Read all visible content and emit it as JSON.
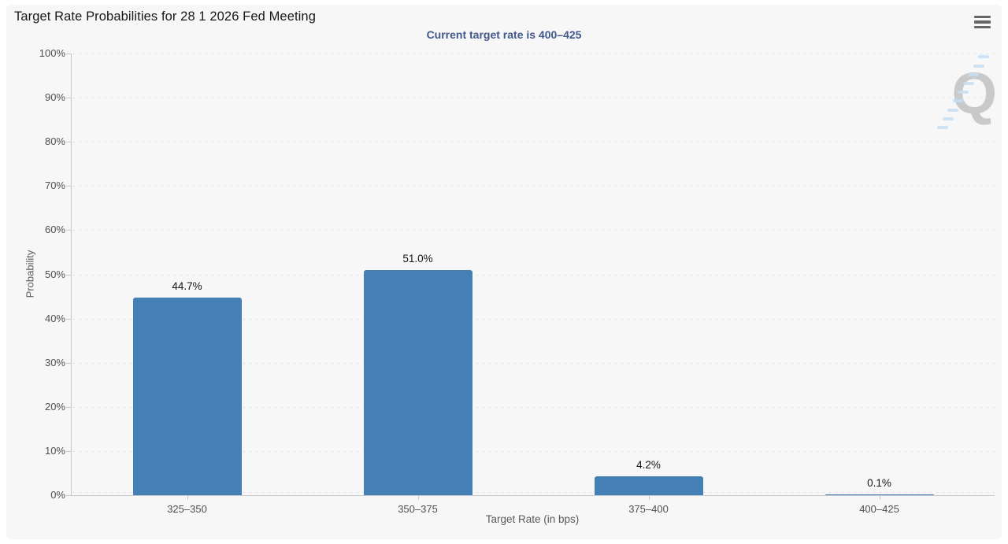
{
  "page": {
    "background": "#ffffff",
    "panel_background": "#f7f7f7"
  },
  "ui": {
    "menu_icon": "hamburger-icon",
    "menu_label": "Chart context menu"
  },
  "colors": {
    "bar": "#4480b5",
    "subtitle": "#42588b",
    "axis_line": "#c9c9c9",
    "gridline": "#dbdbdb",
    "tick_label": "#4f4f4f",
    "watermark_letter": "#c5c5c5",
    "watermark_accent": "#c7def1"
  },
  "watermark": {
    "letter": "Q"
  },
  "chart_data": {
    "type": "bar",
    "title": "Target Rate Probabilities for 28 1 2026 Fed Meeting",
    "subtitle": "Current target rate is 400–425",
    "categories": [
      "325–350",
      "350–375",
      "375–400",
      "400–425"
    ],
    "values": [
      44.7,
      51.0,
      4.2,
      0.1
    ],
    "data_labels": [
      "44.7%",
      "51.0%",
      "4.2%",
      "0.1%"
    ],
    "xlabel": "Target Rate (in bps)",
    "ylabel": "Probability",
    "ylim": [
      0,
      100
    ],
    "ytick_step": 10,
    "ytick_labels": [
      "0%",
      "10%",
      "20%",
      "30%",
      "40%",
      "50%",
      "60%",
      "70%",
      "80%",
      "90%",
      "100%"
    ],
    "grid": "horizontal-dotted",
    "legend": "none",
    "bar_color": "#4480b5"
  }
}
